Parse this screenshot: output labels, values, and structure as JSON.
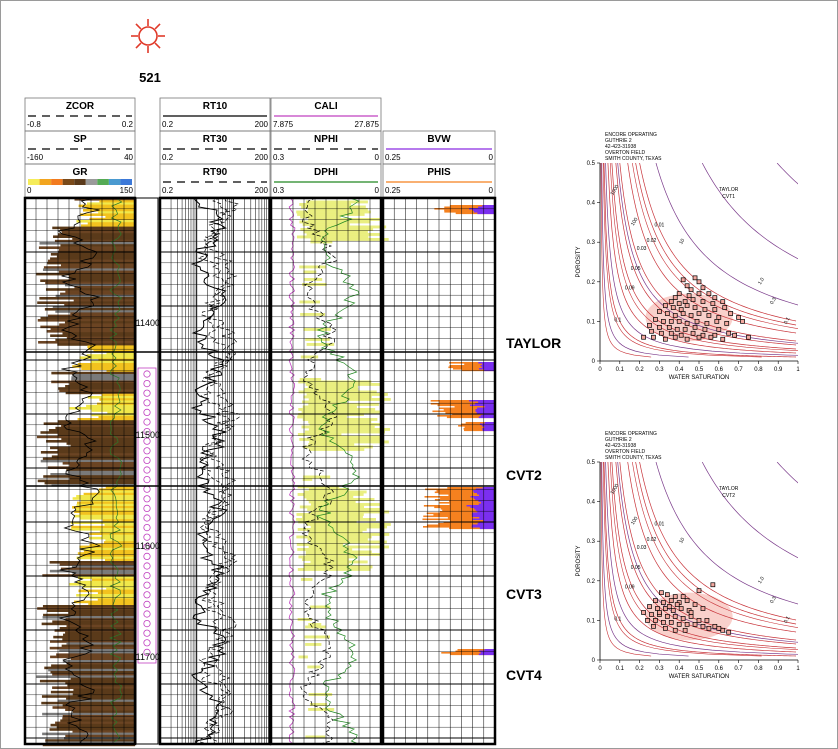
{
  "well": {
    "number": "521",
    "symbol": "gas-well-symbol-icon",
    "symbol_color": "#e03a2a"
  },
  "track1": {
    "curves": [
      {
        "name": "ZCOR",
        "min": "-0.8",
        "max": "0.2",
        "color": "#000000",
        "style": "dashed"
      },
      {
        "name": "SP",
        "min": "-160",
        "max": "40",
        "color": "#000000",
        "style": "dashed"
      },
      {
        "name": "GR",
        "min": "0",
        "max": "150",
        "color": "#000000",
        "style": "solid",
        "colorbar": [
          "#f5ec5a",
          "#f2a51f",
          "#f27b1f",
          "#7a4a1a",
          "#5a3a1a",
          "#9a9a9a",
          "#55aa55",
          "#4a9ad0",
          "#3c78d8"
        ]
      }
    ]
  },
  "track2": {
    "curves": [
      {
        "name": "RT10",
        "min": "0.2",
        "max": "200",
        "style": "solid"
      },
      {
        "name": "RT30",
        "min": "0.2",
        "max": "200",
        "style": "dashed"
      },
      {
        "name": "RT90",
        "min": "0.2",
        "max": "200",
        "style": "dashed"
      }
    ]
  },
  "track3": {
    "curves": [
      {
        "name": "CALI",
        "min": "7.875",
        "max": "27.875",
        "color": "#c040c0",
        "style": "solid"
      },
      {
        "name": "NPHI",
        "min": "0.3",
        "max": "0",
        "color": "#000000",
        "style": "dashed"
      },
      {
        "name": "DPHI",
        "min": "0.3",
        "max": "0",
        "color": "#228822",
        "style": "solid"
      }
    ]
  },
  "track4": {
    "curves": [
      {
        "name": "BVW",
        "min": "0.25",
        "max": "0",
        "color": "#8a2be2",
        "style": "solid"
      },
      {
        "name": "PHIS",
        "min": "0.25",
        "max": "0",
        "color": "#f5811f",
        "style": "solid"
      }
    ]
  },
  "depth_labels": [
    "11400",
    "11500",
    "11600",
    "11700"
  ],
  "zones": [
    "TAYLOR",
    "CVT2",
    "CVT3",
    "CVT4"
  ],
  "colors": {
    "gamma_fill_sand": "#f1e84a",
    "gamma_fill_dark": "#6b4423",
    "neutron_density_fill": "#e9ee7a",
    "bvw": "#7b2ff0",
    "phis": "#f5811f",
    "perf": "#c040c0",
    "xplot_curves_red": "#c8343a",
    "xplot_curves_purple": "#7a3a8a",
    "xplot_points": "#f4a9a0"
  },
  "chart_data": [
    {
      "type": "scatter",
      "title_lines": [
        "ENCORE OPERATING",
        "GUTHRIE 2",
        "42-423-31938",
        "OVERTON FIELD",
        "SMITH COUNTY, TEXAS"
      ],
      "zone_label": [
        "TAYLOR",
        "CVT1"
      ],
      "xlabel": "WATER SATURATION",
      "ylabel": "POROSITY",
      "xlim": [
        0,
        1
      ],
      "ylim": [
        0,
        0.5
      ],
      "xticks": [
        "0",
        "0.1",
        "0.2",
        "0.3",
        "0.4",
        "0.5",
        "0.6",
        "0.7",
        "0.8",
        "0.9",
        "1"
      ],
      "yticks": [
        "0",
        "0.1",
        "0.2",
        "0.3",
        "0.4",
        "0.5"
      ],
      "bvw_labels": [
        "0.1",
        "0.09",
        "0.05",
        "0.03",
        "0.02",
        "0.01"
      ],
      "rt_labels": [
        "1000",
        "100",
        "10",
        "1.0",
        "0.3",
        "0.1"
      ],
      "points": [
        [
          0.42,
          0.205
        ],
        [
          0.44,
          0.19
        ],
        [
          0.48,
          0.21
        ],
        [
          0.5,
          0.2
        ],
        [
          0.52,
          0.185
        ],
        [
          0.46,
          0.18
        ],
        [
          0.4,
          0.17
        ],
        [
          0.38,
          0.16
        ],
        [
          0.45,
          0.165
        ],
        [
          0.5,
          0.17
        ],
        [
          0.55,
          0.17
        ],
        [
          0.58,
          0.16
        ],
        [
          0.36,
          0.15
        ],
        [
          0.4,
          0.145
        ],
        [
          0.43,
          0.15
        ],
        [
          0.47,
          0.155
        ],
        [
          0.52,
          0.15
        ],
        [
          0.57,
          0.145
        ],
        [
          0.62,
          0.15
        ],
        [
          0.33,
          0.14
        ],
        [
          0.37,
          0.135
        ],
        [
          0.41,
          0.13
        ],
        [
          0.44,
          0.14
        ],
        [
          0.48,
          0.135
        ],
        [
          0.53,
          0.13
        ],
        [
          0.58,
          0.13
        ],
        [
          0.63,
          0.135
        ],
        [
          0.3,
          0.125
        ],
        [
          0.34,
          0.12
        ],
        [
          0.38,
          0.115
        ],
        [
          0.42,
          0.12
        ],
        [
          0.46,
          0.115
        ],
        [
          0.5,
          0.12
        ],
        [
          0.55,
          0.115
        ],
        [
          0.6,
          0.11
        ],
        [
          0.66,
          0.12
        ],
        [
          0.7,
          0.11
        ],
        [
          0.28,
          0.105
        ],
        [
          0.32,
          0.1
        ],
        [
          0.36,
          0.1
        ],
        [
          0.4,
          0.1
        ],
        [
          0.44,
          0.095
        ],
        [
          0.49,
          0.1
        ],
        [
          0.54,
          0.095
        ],
        [
          0.59,
          0.1
        ],
        [
          0.64,
          0.095
        ],
        [
          0.72,
          0.1
        ],
        [
          0.25,
          0.09
        ],
        [
          0.3,
          0.085
        ],
        [
          0.35,
          0.085
        ],
        [
          0.39,
          0.08
        ],
        [
          0.43,
          0.08
        ],
        [
          0.48,
          0.085
        ],
        [
          0.53,
          0.08
        ],
        [
          0.6,
          0.08
        ],
        [
          0.26,
          0.075
        ],
        [
          0.31,
          0.07
        ],
        [
          0.36,
          0.07
        ],
        [
          0.41,
          0.065
        ],
        [
          0.47,
          0.07
        ],
        [
          0.52,
          0.065
        ],
        [
          0.58,
          0.065
        ],
        [
          0.65,
          0.07
        ],
        [
          0.22,
          0.06
        ],
        [
          0.27,
          0.06
        ],
        [
          0.33,
          0.055
        ],
        [
          0.38,
          0.06
        ],
        [
          0.44,
          0.055
        ],
        [
          0.5,
          0.06
        ],
        [
          0.56,
          0.06
        ],
        [
          0.62,
          0.055
        ],
        [
          0.68,
          0.065
        ],
        [
          0.75,
          0.06
        ]
      ]
    },
    {
      "type": "scatter",
      "title_lines": [
        "ENCORE OPERATING",
        "GUTHRIE 2",
        "42-423-31938",
        "OVERTON FIELD",
        "SMITH COUNTY, TEXAS"
      ],
      "zone_label": [
        "TAYLOR",
        "CVT2"
      ],
      "xlabel": "WATER SATURATION",
      "ylabel": "POROSITY",
      "xlim": [
        0,
        1
      ],
      "ylim": [
        0,
        0.5
      ],
      "xticks": [
        "0",
        "0.1",
        "0.2",
        "0.3",
        "0.4",
        "0.5",
        "0.6",
        "0.7",
        "0.8",
        "0.9",
        "1"
      ],
      "yticks": [
        "0",
        "0.1",
        "0.2",
        "0.3",
        "0.4",
        "0.5"
      ],
      "bvw_labels": [
        "0.1",
        "0.09",
        "0.05",
        "0.03",
        "0.02",
        "0.01"
      ],
      "rt_labels": [
        "1000",
        "100",
        "10",
        "1.0",
        "0.3",
        "0.1"
      ],
      "points": [
        [
          0.57,
          0.19
        ],
        [
          0.5,
          0.175
        ],
        [
          0.31,
          0.17
        ],
        [
          0.34,
          0.165
        ],
        [
          0.38,
          0.16
        ],
        [
          0.42,
          0.16
        ],
        [
          0.28,
          0.15
        ],
        [
          0.32,
          0.145
        ],
        [
          0.36,
          0.15
        ],
        [
          0.4,
          0.145
        ],
        [
          0.44,
          0.15
        ],
        [
          0.48,
          0.14
        ],
        [
          0.25,
          0.135
        ],
        [
          0.29,
          0.13
        ],
        [
          0.33,
          0.13
        ],
        [
          0.37,
          0.125
        ],
        [
          0.41,
          0.13
        ],
        [
          0.45,
          0.125
        ],
        [
          0.52,
          0.13
        ],
        [
          0.22,
          0.12
        ],
        [
          0.26,
          0.115
        ],
        [
          0.3,
          0.115
        ],
        [
          0.34,
          0.11
        ],
        [
          0.38,
          0.11
        ],
        [
          0.42,
          0.105
        ],
        [
          0.46,
          0.11
        ],
        [
          0.5,
          0.1
        ],
        [
          0.24,
          0.1
        ],
        [
          0.28,
          0.1
        ],
        [
          0.32,
          0.095
        ],
        [
          0.36,
          0.095
        ],
        [
          0.4,
          0.09
        ],
        [
          0.44,
          0.09
        ],
        [
          0.48,
          0.09
        ],
        [
          0.52,
          0.085
        ],
        [
          0.55,
          0.08
        ],
        [
          0.58,
          0.085
        ],
        [
          0.62,
          0.075
        ],
        [
          0.27,
          0.085
        ],
        [
          0.33,
          0.08
        ],
        [
          0.38,
          0.075
        ],
        [
          0.43,
          0.075
        ],
        [
          0.3,
          0.12
        ],
        [
          0.35,
          0.135
        ],
        [
          0.39,
          0.14
        ],
        [
          0.46,
          0.12
        ],
        [
          0.54,
          0.1
        ],
        [
          0.6,
          0.08
        ],
        [
          0.65,
          0.07
        ]
      ]
    }
  ]
}
